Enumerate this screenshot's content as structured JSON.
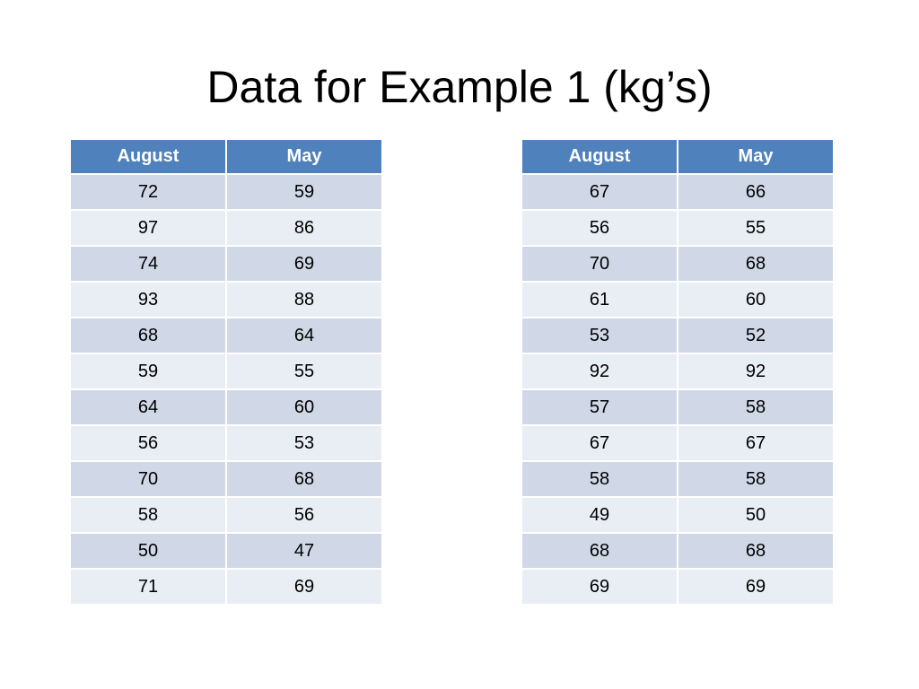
{
  "title": "Data for Example 1 (kg’s)",
  "colors": {
    "header_bg": "#4f81bd",
    "row_odd": "#d0d8e8",
    "row_even": "#e9edf4"
  },
  "tables": [
    {
      "headers": [
        "August",
        "May"
      ],
      "rows": [
        [
          "72",
          "59"
        ],
        [
          "97",
          "86"
        ],
        [
          "74",
          "69"
        ],
        [
          "93",
          "88"
        ],
        [
          "68",
          "64"
        ],
        [
          "59",
          "55"
        ],
        [
          "64",
          "60"
        ],
        [
          "56",
          "53"
        ],
        [
          "70",
          "68"
        ],
        [
          "58",
          "56"
        ],
        [
          "50",
          "47"
        ],
        [
          "71",
          "69"
        ]
      ]
    },
    {
      "headers": [
        "August",
        "May"
      ],
      "rows": [
        [
          "67",
          "66"
        ],
        [
          "56",
          "55"
        ],
        [
          "70",
          "68"
        ],
        [
          "61",
          "60"
        ],
        [
          "53",
          "52"
        ],
        [
          "92",
          "92"
        ],
        [
          "57",
          "58"
        ],
        [
          "67",
          "67"
        ],
        [
          "58",
          "58"
        ],
        [
          "49",
          "50"
        ],
        [
          "68",
          "68"
        ],
        [
          "69",
          "69"
        ]
      ]
    }
  ]
}
